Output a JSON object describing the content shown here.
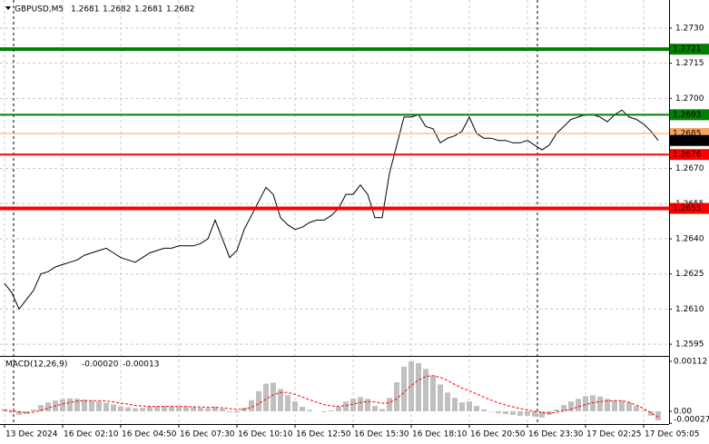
{
  "chart_data": {
    "type": "line",
    "symbol": "GBPUSD,M5",
    "ohlc": [
      1.2681,
      1.2682,
      1.2681,
      1.2682
    ],
    "xlim": [
      -0.625,
      91.5
    ],
    "xticks": [
      {
        "value": 0,
        "label": "13 Dec 2024"
      },
      {
        "value": 8,
        "label": "16 Dec 02:10"
      },
      {
        "value": 16,
        "label": "16 Dec 04:50"
      },
      {
        "value": 24,
        "label": "16 Dec 07:30"
      },
      {
        "value": 32,
        "label": "16 Dec 10:10"
      },
      {
        "value": 40,
        "label": "16 Dec 12:50"
      },
      {
        "value": 48,
        "label": "16 Dec 15:30"
      },
      {
        "value": 56,
        "label": "16 Dec 18:10"
      },
      {
        "value": 64,
        "label": "16 Dec 20:50"
      },
      {
        "value": 72,
        "label": "16 Dec 23:30"
      },
      {
        "value": 80,
        "label": "17 Dec 02:25"
      },
      {
        "value": 88,
        "label": "17 Dec 05:05"
      }
    ],
    "ylim": [
      1.259,
      1.2742
    ],
    "yticks": [
      {
        "value": 1.273,
        "label": "1.2730"
      },
      1.2715,
      {
        "value": 1.27,
        "label": "1.2700"
      },
      {
        "value": 1.267,
        "label": "1.2670"
      },
      1.2655,
      {
        "value": 1.264,
        "label": "1.2640"
      },
      1.2625,
      {
        "value": 1.261,
        "label": "1.2610"
      },
      1.2595
    ],
    "grid": true,
    "color": "#000000",
    "values": [
      1.2621,
      1.2617,
      1.261,
      1.2614,
      1.2618,
      1.2625,
      1.2626,
      1.2628,
      1.2629,
      1.263,
      1.2631,
      1.2633,
      1.2634,
      1.2635,
      1.2636,
      1.2634,
      1.2632,
      1.2631,
      1.263,
      1.2632,
      1.2634,
      1.2635,
      1.2636,
      1.2636,
      1.2637,
      1.2637,
      1.2637,
      1.2638,
      1.264,
      1.2648,
      1.264,
      1.2632,
      1.2635,
      1.2644,
      1.265,
      1.2656,
      1.2662,
      1.2659,
      1.2649,
      1.2646,
      1.2644,
      1.2645,
      1.2647,
      1.2648,
      1.2648,
      1.265,
      1.2653,
      1.2659,
      1.2659,
      1.2663,
      1.2659,
      1.2649,
      1.2649,
      1.2668,
      1.268,
      1.2692,
      1.2692,
      1.2693,
      1.2688,
      1.2687,
      1.2681,
      1.2683,
      1.2684,
      1.2686,
      1.2692,
      1.2685,
      1.2683,
      1.2683,
      1.2682,
      1.2682,
      1.2681,
      1.2681,
      1.2682,
      1.268,
      1.2678,
      1.268,
      1.2685,
      1.2688,
      1.2691,
      1.2692,
      1.2693,
      1.2693,
      1.2692,
      1.269,
      1.2693,
      1.2695,
      1.2692,
      1.2691,
      1.2689,
      1.2686,
      1.2682
    ],
    "levels": [
      {
        "value": 1.2721,
        "color": "#008000",
        "width": 4
      },
      {
        "value": 1.2693,
        "color": "#008000",
        "width": 2
      },
      {
        "value": 1.2685,
        "color": "#f4a460",
        "width": 1
      },
      {
        "value": 1.2676,
        "color": "#ff0000",
        "width": 2
      },
      {
        "value": 1.2653,
        "color": "#ff0000",
        "width": 4
      }
    ],
    "current_price": 1.2682,
    "macd": {
      "name": "MACD(12,26,9)",
      "current_values": [
        "-0.00020",
        "-0.00013"
      ],
      "ylim": [
        -0.000285,
        0.00122
      ],
      "yticks": [
        0.00112,
        {
          "value": 0,
          "label": "0.00"
        },
        -0.00027
      ],
      "hist_color": "#c0c0c0",
      "signal_color": "#ff0000",
      "values": [
        5e-05,
        -3e-05,
        -8e-05,
        -6e-05,
        4e-05,
        0.00014,
        0.0002,
        0.00024,
        0.00027,
        0.00029,
        0.00028,
        0.00026,
        0.00024,
        0.00022,
        0.00019,
        0.00015,
        0.00011,
        9e-05,
        7e-05,
        8e-05,
        0.0001,
        0.00011,
        0.00012,
        0.00011,
        0.00011,
        0.0001,
        9e-05,
        8e-05,
        7e-05,
        0.0001,
        6e-05,
        -2e-05,
        -3e-05,
        8e-05,
        0.00025,
        0.00045,
        0.00062,
        0.00064,
        0.0005,
        0.00036,
        0.00022,
        0.0001,
        3e-05,
        0,
        -2e-05,
        2e-05,
        0.0001,
        0.00022,
        0.00028,
        0.00032,
        0.00028,
        0.00012,
        5e-05,
        0.0003,
        0.00065,
        0.001,
        0.00112,
        0.00108,
        0.00095,
        0.0008,
        0.0006,
        0.00042,
        0.0003,
        0.0002,
        0.00022,
        0.00012,
        4e-05,
        -1e-05,
        -4e-05,
        -6e-05,
        -8e-05,
        -0.0001,
        -0.0001,
        -0.00012,
        -0.00014,
        -8e-05,
        4e-05,
        0.00014,
        0.00022,
        0.00028,
        0.00034,
        0.00036,
        0.00033,
        0.00028,
        0.00024,
        0.00024,
        0.0002,
        0.00012,
        2e-05,
        -0.0001,
        -0.0002
      ],
      "signal": [
        2e-05,
        1e-05,
        -1e-05,
        -3e-05,
        -2e-05,
        2e-05,
        7e-05,
        0.00012,
        0.00016,
        0.0002,
        0.00023,
        0.00024,
        0.00024,
        0.00024,
        0.00023,
        0.00021,
        0.00018,
        0.00016,
        0.00013,
        0.00012,
        0.00011,
        0.00011,
        0.00011,
        0.00011,
        0.00011,
        0.00011,
        0.0001,
        0.0001,
        9e-05,
        9e-05,
        8e-05,
        6e-05,
        4e-05,
        5e-05,
        9e-05,
        0.00017,
        0.00027,
        0.00037,
        0.00042,
        0.00042,
        0.00038,
        0.00032,
        0.00026,
        0.0002,
        0.00015,
        0.00012,
        0.00011,
        0.00013,
        0.00016,
        0.0002,
        0.00022,
        0.00021,
        0.00018,
        0.00019,
        0.00028,
        0.00042,
        0.00058,
        0.0007,
        0.00078,
        0.0008,
        0.00076,
        0.00069,
        0.0006,
        0.00052,
        0.00046,
        0.00039,
        0.00032,
        0.00025,
        0.00019,
        0.00014,
        0.0001,
        6e-05,
        3e-05,
        0,
        -3e-05,
        -4e-05,
        -2e-05,
        1e-05,
        5e-05,
        0.0001,
        0.00015,
        0.00019,
        0.00022,
        0.00023,
        0.00024,
        0.00024,
        0.0002,
        0.00014,
        6e-05,
        -3e-05,
        -0.00013
      ]
    }
  }
}
